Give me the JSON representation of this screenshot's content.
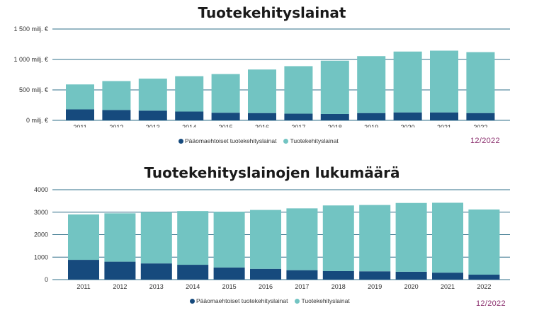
{
  "colors": {
    "dark": "#164a7d",
    "light": "#72c4c2",
    "grid": "#2f6f88",
    "date": "#8b2f6e"
  },
  "chart_data": [
    {
      "type": "bar",
      "stacked": true,
      "title": "Tuotekehityslainat",
      "categories": [
        "2011",
        "2012",
        "2013",
        "2014",
        "2015",
        "2016",
        "2017",
        "2018",
        "2019",
        "2020",
        "2021",
        "2022"
      ],
      "series": [
        {
          "name": "Pääomaehtoiset tuotekehityslainat",
          "values": [
            180,
            170,
            160,
            145,
            125,
            120,
            110,
            105,
            120,
            130,
            130,
            120
          ]
        },
        {
          "name": "Tuotekehityslainat",
          "values": [
            410,
            475,
            525,
            580,
            635,
            715,
            780,
            875,
            935,
            1000,
            1015,
            1000
          ]
        }
      ],
      "ylim": [
        0,
        1500
      ],
      "yticks": [
        0,
        500,
        1000,
        1500
      ],
      "ytick_labels": [
        "0 milj. €",
        "500 milj. €",
        "1 000 milj. €",
        "1 500 milj. €"
      ],
      "grid": true,
      "legend_position": "bottom",
      "date_label": "12/2022"
    },
    {
      "type": "bar",
      "stacked": true,
      "title": "Tuotekehityslainojen lukumäärä",
      "categories": [
        "2011",
        "2012",
        "2013",
        "2014",
        "2015",
        "2016",
        "2017",
        "2018",
        "2019",
        "2020",
        "2021",
        "2022"
      ],
      "series": [
        {
          "name": "Pääomaehtoiset tuotekehityslainat",
          "values": [
            880,
            800,
            720,
            660,
            540,
            480,
            420,
            380,
            370,
            350,
            310,
            220
          ]
        },
        {
          "name": "Tuotekehityslainat",
          "values": [
            2020,
            2150,
            2280,
            2390,
            2480,
            2620,
            2750,
            2920,
            2950,
            3060,
            3110,
            2900
          ]
        }
      ],
      "ylim": [
        0,
        4000
      ],
      "yticks": [
        0,
        1000,
        2000,
        3000,
        4000
      ],
      "ytick_labels": [
        "0",
        "1000",
        "2000",
        "3000",
        "4000"
      ],
      "grid": true,
      "legend_position": "bottom",
      "date_label": "12/2022"
    }
  ]
}
